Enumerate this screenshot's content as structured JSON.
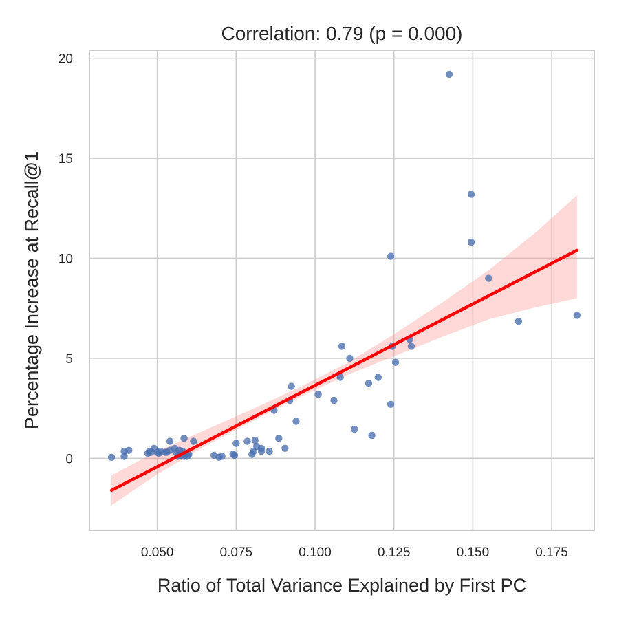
{
  "chart_data": {
    "type": "scatter",
    "title": "Correlation: 0.79 (p = 0.000)",
    "xlabel": "Ratio of Total Variance Explained by First PC",
    "ylabel": "Percentage Increase at Recall@1",
    "xlim": [
      0.0285,
      0.1885
    ],
    "ylim": [
      -3.6,
      20.4
    ],
    "xticks": [
      0.05,
      0.075,
      0.1,
      0.125,
      0.15,
      0.175
    ],
    "xtick_labels": [
      "0.050",
      "0.075",
      "0.100",
      "0.125",
      "0.150",
      "0.175"
    ],
    "yticks": [
      0,
      5,
      10,
      15,
      20
    ],
    "ytick_labels": [
      "0",
      "5",
      "10",
      "15",
      "20"
    ],
    "grid": true,
    "colors": {
      "points": "#4c72b0",
      "regression_line": "#ff0000",
      "confidence_band": "#ff9999"
    },
    "points": [
      [
        0.0355,
        0.05
      ],
      [
        0.0395,
        0.1
      ],
      [
        0.0395,
        0.35
      ],
      [
        0.041,
        0.4
      ],
      [
        0.047,
        0.25
      ],
      [
        0.0475,
        0.35
      ],
      [
        0.048,
        0.3
      ],
      [
        0.049,
        0.5
      ],
      [
        0.05,
        0.3
      ],
      [
        0.0505,
        0.25
      ],
      [
        0.051,
        0.35
      ],
      [
        0.0525,
        0.3
      ],
      [
        0.053,
        0.3
      ],
      [
        0.054,
        0.4
      ],
      [
        0.054,
        0.85
      ],
      [
        0.0555,
        0.5
      ],
      [
        0.056,
        0.3
      ],
      [
        0.0565,
        0.1
      ],
      [
        0.057,
        0.4
      ],
      [
        0.0575,
        0.15
      ],
      [
        0.058,
        0.35
      ],
      [
        0.0585,
        1.0
      ],
      [
        0.0585,
        0.1
      ],
      [
        0.059,
        0.25
      ],
      [
        0.0595,
        0.1
      ],
      [
        0.06,
        0.2
      ],
      [
        0.0615,
        0.85
      ],
      [
        0.068,
        0.15
      ],
      [
        0.0695,
        0.05
      ],
      [
        0.0705,
        0.1
      ],
      [
        0.074,
        0.2
      ],
      [
        0.0745,
        0.15
      ],
      [
        0.075,
        0.75
      ],
      [
        0.0785,
        0.85
      ],
      [
        0.08,
        0.2
      ],
      [
        0.0805,
        0.35
      ],
      [
        0.081,
        0.9
      ],
      [
        0.0815,
        0.6
      ],
      [
        0.083,
        0.35
      ],
      [
        0.083,
        0.5
      ],
      [
        0.0855,
        0.35
      ],
      [
        0.087,
        2.4
      ],
      [
        0.0885,
        1.0
      ],
      [
        0.0905,
        0.5
      ],
      [
        0.092,
        2.9
      ],
      [
        0.0925,
        3.6
      ],
      [
        0.094,
        1.85
      ],
      [
        0.101,
        3.2
      ],
      [
        0.106,
        2.9
      ],
      [
        0.108,
        4.05
      ],
      [
        0.1085,
        5.6
      ],
      [
        0.111,
        5.0
      ],
      [
        0.1125,
        1.45
      ],
      [
        0.117,
        3.75
      ],
      [
        0.118,
        1.15
      ],
      [
        0.12,
        4.05
      ],
      [
        0.124,
        10.1
      ],
      [
        0.124,
        2.7
      ],
      [
        0.1245,
        5.6
      ],
      [
        0.1255,
        4.8
      ],
      [
        0.13,
        5.95
      ],
      [
        0.1305,
        5.6
      ],
      [
        0.1425,
        19.2
      ],
      [
        0.1495,
        13.2
      ],
      [
        0.1495,
        10.8
      ],
      [
        0.155,
        9.0
      ],
      [
        0.1645,
        6.85
      ],
      [
        0.183,
        7.15
      ]
    ],
    "regression": {
      "x_range": [
        0.0355,
        0.183
      ],
      "y_range": [
        -1.6,
        10.4
      ]
    },
    "confidence_band": [
      [
        0.0355,
        -2.35,
        -0.85
      ],
      [
        0.05,
        -0.8,
        0.35
      ],
      [
        0.065,
        0.6,
        1.4
      ],
      [
        0.08,
        1.85,
        2.45
      ],
      [
        0.095,
        3.05,
        3.55
      ],
      [
        0.11,
        4.15,
        4.75
      ],
      [
        0.125,
        5.1,
        6.2
      ],
      [
        0.14,
        6.05,
        7.75
      ],
      [
        0.155,
        6.95,
        9.4
      ],
      [
        0.17,
        7.55,
        11.3
      ],
      [
        0.183,
        8.0,
        13.15
      ]
    ]
  }
}
